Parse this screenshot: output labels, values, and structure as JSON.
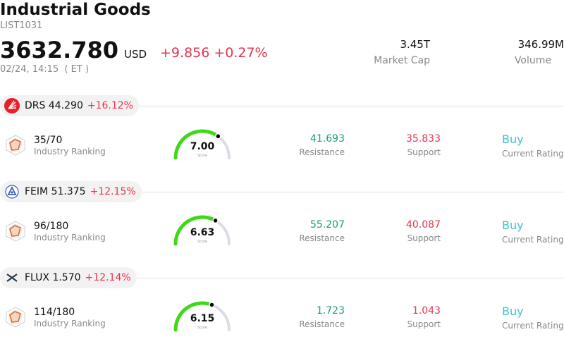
{
  "header": {
    "title": "Industrial Goods",
    "code": "LIST1031",
    "price": "3632.780",
    "currency": "USD",
    "change": "+9.856",
    "change_pct": "+0.27%",
    "time": "02/24, 14:15  ( ET )",
    "market_cap_value": "3.45T",
    "market_cap_label": "Market Cap",
    "volume_value": "346.99M",
    "volume_label": "Volume"
  },
  "stocks": [
    {
      "ticker": "DRS",
      "price": "44.290",
      "change_pct": "+16.12%",
      "rank": "35/70",
      "rank_label": "Industry Ranking",
      "score": "7.00",
      "score_fraction": 0.7,
      "score_label": "Score",
      "resistance": "41.693",
      "resistance_label": "Resistance",
      "support": "35.833",
      "support_label": "Support",
      "rating": "Buy",
      "rating_label": "Current Rating",
      "logo_color": "#e8202a"
    },
    {
      "ticker": "FEIM",
      "price": "51.375",
      "change_pct": "+12.15%",
      "rank": "96/180",
      "rank_label": "Industry Ranking",
      "score": "6.63",
      "score_fraction": 0.663,
      "score_label": "Score",
      "resistance": "55.207",
      "resistance_label": "Resistance",
      "support": "40.087",
      "support_label": "Support",
      "rating": "Buy",
      "rating_label": "Current Rating",
      "logo_color": "#3a5bb8"
    },
    {
      "ticker": "FLUX",
      "price": "1.570",
      "change_pct": "+12.14%",
      "rank": "114/180",
      "rank_label": "Industry Ranking",
      "score": "6.15",
      "score_fraction": 0.615,
      "score_label": "Score",
      "resistance": "1.723",
      "resistance_label": "Resistance",
      "support": "1.043",
      "support_label": "Support",
      "rating": "Buy",
      "rating_label": "Current Rating",
      "logo_color": "#2a3a4a"
    }
  ],
  "colors": {
    "up": "#e8344e",
    "resistance": "#1a9c7e",
    "rating": "#3cc4c4",
    "gauge_fill": "#3fd81a",
    "gauge_track": "#dcdce6",
    "ranking_icon": "#e06a2a"
  }
}
